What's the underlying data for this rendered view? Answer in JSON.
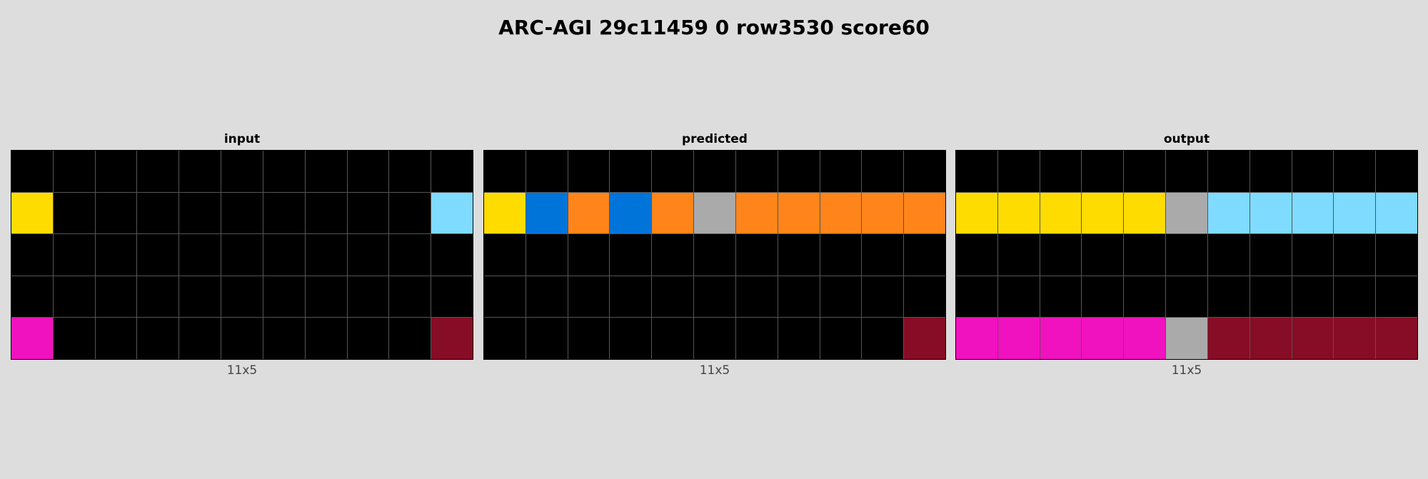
{
  "title": "ARC-AGI 29c11459 0 row3530 score60",
  "palette": {
    "0": "#000000",
    "1": "#0074d9",
    "2": "#ff4136",
    "3": "#2ecc40",
    "4": "#ffdc00",
    "5": "#aaaaaa",
    "6": "#f012be",
    "7": "#ff851b",
    "8": "#7fdbff",
    "9": "#870c25"
  },
  "panels": [
    {
      "title": "input",
      "size": "11x5",
      "grid": [
        [
          0,
          0,
          0,
          0,
          0,
          0,
          0,
          0,
          0,
          0,
          0
        ],
        [
          4,
          0,
          0,
          0,
          0,
          0,
          0,
          0,
          0,
          0,
          8
        ],
        [
          0,
          0,
          0,
          0,
          0,
          0,
          0,
          0,
          0,
          0,
          0
        ],
        [
          0,
          0,
          0,
          0,
          0,
          0,
          0,
          0,
          0,
          0,
          0
        ],
        [
          6,
          0,
          0,
          0,
          0,
          0,
          0,
          0,
          0,
          0,
          9
        ]
      ]
    },
    {
      "title": "predicted",
      "size": "11x5",
      "grid": [
        [
          0,
          0,
          0,
          0,
          0,
          0,
          0,
          0,
          0,
          0,
          0
        ],
        [
          4,
          1,
          7,
          1,
          7,
          5,
          7,
          7,
          7,
          7,
          7
        ],
        [
          0,
          0,
          0,
          0,
          0,
          0,
          0,
          0,
          0,
          0,
          0
        ],
        [
          0,
          0,
          0,
          0,
          0,
          0,
          0,
          0,
          0,
          0,
          0
        ],
        [
          0,
          0,
          0,
          0,
          0,
          0,
          0,
          0,
          0,
          0,
          9
        ]
      ]
    },
    {
      "title": "output",
      "size": "11x5",
      "grid": [
        [
          0,
          0,
          0,
          0,
          0,
          0,
          0,
          0,
          0,
          0,
          0
        ],
        [
          4,
          4,
          4,
          4,
          4,
          5,
          8,
          8,
          8,
          8,
          8
        ],
        [
          0,
          0,
          0,
          0,
          0,
          0,
          0,
          0,
          0,
          0,
          0
        ],
        [
          0,
          0,
          0,
          0,
          0,
          0,
          0,
          0,
          0,
          0,
          0
        ],
        [
          6,
          6,
          6,
          6,
          6,
          5,
          9,
          9,
          9,
          9,
          9
        ]
      ]
    }
  ]
}
